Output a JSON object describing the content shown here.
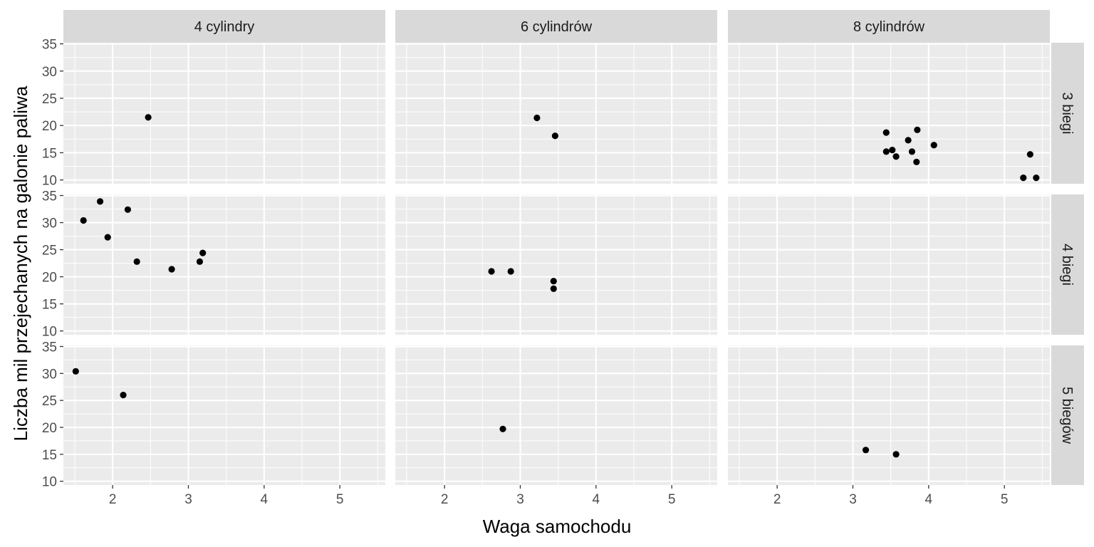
{
  "chart_data": {
    "type": "scatter",
    "facet": "grid",
    "xlabel": "Waga samochodu",
    "ylabel": "Liczba mil przejechanych na galonie paliwa",
    "columns": [
      "4 cylindry",
      "6 cylindrów",
      "8 cylindrów"
    ],
    "rows": [
      "3 biegi",
      "4 biegi",
      "5 biegów"
    ],
    "xlim": [
      1.35,
      5.6
    ],
    "ylim": [
      9.3,
      35.2
    ],
    "x_ticks": [
      2,
      3,
      4,
      5
    ],
    "y_ticks": [
      10,
      15,
      20,
      25,
      30,
      35
    ],
    "grid": true,
    "panels": [
      {
        "column": "4 cylindry",
        "row": "3 biegi",
        "points": [
          [
            2.47,
            21.5
          ]
        ]
      },
      {
        "column": "6 cylindrów",
        "row": "3 biegi",
        "points": [
          [
            3.22,
            21.4
          ],
          [
            3.46,
            18.1
          ]
        ]
      },
      {
        "column": "8 cylindrów",
        "row": "3 biegi",
        "points": [
          [
            3.44,
            18.7
          ],
          [
            3.57,
            14.3
          ],
          [
            3.73,
            17.3
          ],
          [
            3.78,
            15.2
          ],
          [
            3.84,
            13.3
          ],
          [
            3.85,
            19.2
          ],
          [
            3.44,
            15.2
          ],
          [
            3.52,
            15.5
          ],
          [
            4.07,
            16.4
          ],
          [
            5.25,
            10.4
          ],
          [
            5.42,
            10.4
          ],
          [
            5.34,
            14.7
          ]
        ]
      },
      {
        "column": "4 cylindry",
        "row": "4 biegi",
        "points": [
          [
            2.32,
            22.8
          ],
          [
            3.19,
            24.4
          ],
          [
            3.15,
            22.8
          ],
          [
            2.2,
            32.4
          ],
          [
            1.615,
            30.4
          ],
          [
            1.835,
            33.9
          ],
          [
            1.935,
            27.3
          ],
          [
            2.78,
            21.4
          ]
        ]
      },
      {
        "column": "6 cylindrów",
        "row": "4 biegi",
        "points": [
          [
            2.62,
            21.0
          ],
          [
            2.875,
            21.0
          ],
          [
            3.44,
            19.2
          ],
          [
            3.44,
            17.8
          ]
        ]
      },
      {
        "column": "8 cylindrów",
        "row": "4 biegi",
        "points": []
      },
      {
        "column": "4 cylindry",
        "row": "5 biegów",
        "points": [
          [
            2.14,
            26.0
          ],
          [
            1.513,
            30.4
          ]
        ]
      },
      {
        "column": "6 cylindrów",
        "row": "5 biegów",
        "points": [
          [
            2.77,
            19.7
          ]
        ]
      },
      {
        "column": "8 cylindrów",
        "row": "5 biegów",
        "points": [
          [
            3.17,
            15.8
          ],
          [
            3.57,
            15.0
          ]
        ]
      }
    ]
  }
}
